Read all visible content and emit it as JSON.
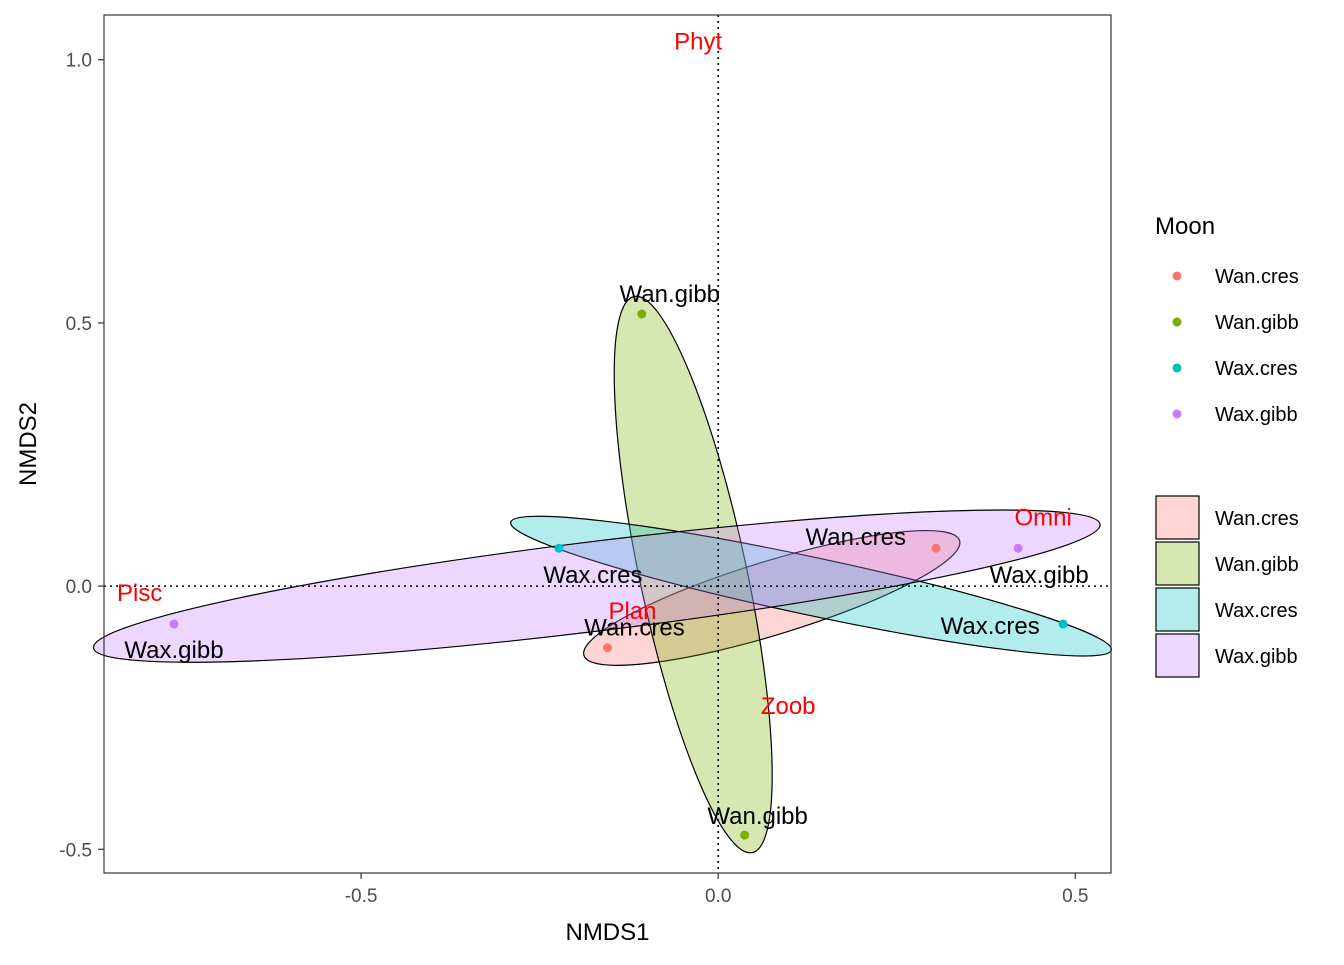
{
  "chart_data": {
    "type": "scatter",
    "xlabel": "NMDS1",
    "ylabel": "NMDS2",
    "xlim": [
      -0.86,
      0.55
    ],
    "ylim": [
      -0.545,
      1.085
    ],
    "x_ticks": [
      -0.5,
      0.0,
      0.5
    ],
    "x_tick_labels": [
      "-0.5",
      "0.0",
      "0.5"
    ],
    "y_ticks": [
      -0.5,
      0.0,
      0.5,
      1.0
    ],
    "y_tick_labels": [
      "-0.5",
      "0.0",
      "0.5",
      "1.0"
    ],
    "grid": false,
    "reference_lines": {
      "x": 0,
      "y": 0,
      "style": "dotted"
    },
    "groups": [
      {
        "name": "Wan.cres",
        "color": "#F8766D"
      },
      {
        "name": "Wan.gibb",
        "color": "#7CAE00"
      },
      {
        "name": "Wax.cres",
        "color": "#00BFC4"
      },
      {
        "name": "Wax.gibb",
        "color": "#C77CFF"
      }
    ],
    "points": [
      {
        "group": "Wan.cres",
        "label": "Wan.cres",
        "x": 0.305,
        "y": 0.072
      },
      {
        "group": "Wan.cres",
        "label": "Wan.cres",
        "x": -0.155,
        "y": -0.117
      },
      {
        "group": "Wan.gibb",
        "label": "Wan.gibb",
        "x": -0.107,
        "y": 0.517
      },
      {
        "group": "Wan.gibb",
        "label": "Wan.gibb",
        "x": 0.037,
        "y": -0.473
      },
      {
        "group": "Wax.cres",
        "label": "Wax.cres",
        "x": -0.223,
        "y": 0.072
      },
      {
        "group": "Wax.cres",
        "label": "Wax.cres",
        "x": 0.483,
        "y": -0.072
      },
      {
        "group": "Wax.gibb",
        "label": "Wax.gibb",
        "x": 0.42,
        "y": 0.072
      },
      {
        "group": "Wax.gibb",
        "label": "Wax.gibb",
        "x": -0.762,
        "y": -0.072
      }
    ],
    "species": [
      {
        "label": "Phyt",
        "x": -0.028,
        "y": 1.035
      },
      {
        "label": "Omni",
        "x": 0.455,
        "y": 0.13
      },
      {
        "label": "Pisc",
        "x": -0.81,
        "y": -0.013
      },
      {
        "label": "Plan",
        "x": -0.12,
        "y": -0.047
      },
      {
        "label": "Zoob",
        "x": 0.098,
        "y": -0.228
      }
    ],
    "ellipses": [
      {
        "group": "Wan.cres",
        "cx": 0.075,
        "cy": -0.0225,
        "rx": 0.275,
        "ry": 0.07,
        "angle_deg": 17
      },
      {
        "group": "Wan.gibb",
        "cx": -0.035,
        "cy": 0.022,
        "rx": 0.54,
        "ry": 0.075,
        "angle_deg": -78
      },
      {
        "group": "Wax.cres",
        "cx": 0.13,
        "cy": 0.0,
        "rx": 0.43,
        "ry": 0.055,
        "angle_deg": -12
      },
      {
        "group": "Wax.gibb",
        "cx": -0.17,
        "cy": 0.0,
        "rx": 0.71,
        "ry": 0.085,
        "angle_deg": 7
      }
    ],
    "legend": {
      "title": "Moon",
      "placement": "right",
      "point_items": [
        "Wan.cres",
        "Wan.gibb",
        "Wax.cres",
        "Wax.gibb"
      ],
      "fill_items": [
        "Wan.cres",
        "Wan.gibb",
        "Wax.cres",
        "Wax.gibb"
      ]
    }
  }
}
